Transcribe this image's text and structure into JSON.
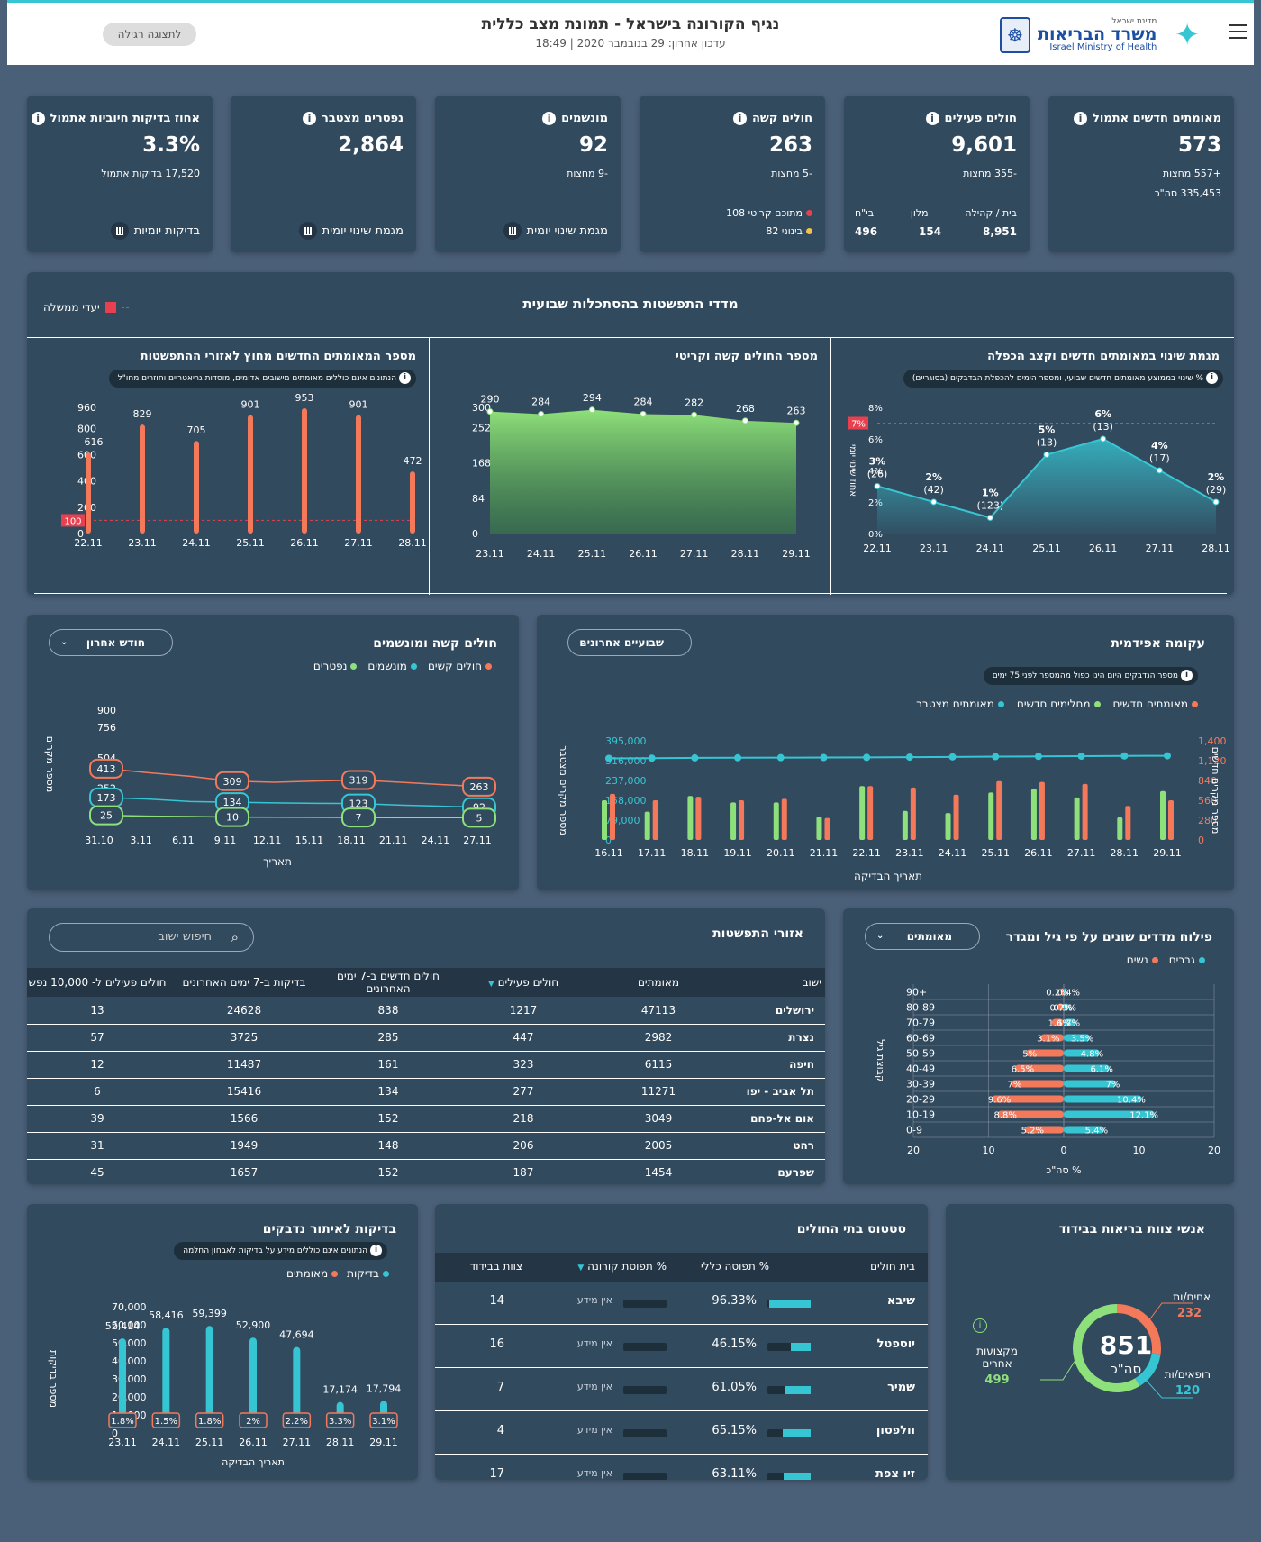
{
  "header": {
    "title": "נגיף הקורונה בישראל - תמונת מצב כללית",
    "updated": "עדכון אחרון: 29 בנובמבר 2020 | 18:49",
    "regular_view": "לתצוגה רגילה",
    "logo_small": "מדינת ישראל",
    "logo_big": "משרד הבריאות",
    "logo_en": "Israel Ministry of Health"
  },
  "kpis": [
    {
      "title": "מאומתים חדשים אתמול",
      "value": "573",
      "s1": "+557 מחצות",
      "s2": "335,453 סה\"כ"
    },
    {
      "title": "חולים פעילים",
      "value": "9,601",
      "s1": "-355 מחצות",
      "h1": "בית / קהילה",
      "h2": "מלון",
      "h3": "בי\"ח",
      "v1": "8,951",
      "v2": "154",
      "v3": "496"
    },
    {
      "title": "חולים קשה",
      "value": "263",
      "s1": "-5 מחצות",
      "r1": "מתוכם קריטי 108",
      "r2": "בינוני 82"
    },
    {
      "title": "מונשמים",
      "value": "92",
      "s1": "-9 מחצות",
      "foot": "מגמת שינוי יומית"
    },
    {
      "title": "נפטרים מצטבר",
      "value": "2,864",
      "foot": "מגמת שינוי יומית"
    },
    {
      "title": "אחוז בדיקות חיוביות אתמול",
      "value": "3.3%",
      "s1": "17,520 בדיקות אתמול",
      "foot": "בדיקות יומיות"
    }
  ],
  "weekly": {
    "title": "מדדי התפשטות בהסתכלות שבועית",
    "gov_targets": "יעדי ממשלה",
    "c1": {
      "title": "מגמת שינוי במאומתים חדשים וקצב הכפלה",
      "note": "% שינוי בממוצע מאומתים חדשים שבועי, ומספר הימים להכפלת הבדבקים (בסוגריים)",
      "ylabel": "אחוז שינוי יומי",
      "target": "7%"
    },
    "c2": {
      "title": "מספר החולים קשה וקריטי"
    },
    "c3": {
      "title": "מספר המאומתים החדשים מחוץ לאזורי ההתפשטות",
      "note": "הנתונים אינם כוללים מאומתים מישובים אדומים, מוסדות גריאטריים וחוזרים מחו\"ל",
      "target": "100"
    }
  },
  "epi": {
    "title": "עקומה אפידמית",
    "dropdown": "שבועיים אחרונים",
    "note": "מספר הנדבקים היום הינו כפול מהמספר לפני 75 ימים",
    "legend": [
      "מאומתים חדשים",
      "מחלימים חדשים",
      "מאומתים מצטבר"
    ],
    "ylabel_r": "מספר מקרים חדשים",
    "ylabel_l": "מספר מקרים מצטבר",
    "xlabel": "תאריך הבדיקה"
  },
  "severe": {
    "title": "חולים קשה ומונשמים",
    "dropdown": "חודש אחרון",
    "legend": [
      "חולים קשים",
      "מונשמים",
      "נפטרים"
    ],
    "ylabel": "מספר מקרים",
    "xlabel": "תאריך"
  },
  "age": {
    "title": "פילוח מדדים שונים על פי גיל ומגדר",
    "dropdown": "מאומתים",
    "legend": [
      "גברים",
      "נשים"
    ],
    "ylabel": "קבוצת גיל",
    "xlabel": "% סה\"כ"
  },
  "table": {
    "title": "אזורי התפשטות",
    "search": "חיפוש ישוב",
    "headers": [
      "ישוב",
      "מאומתים",
      "חולים פעילים",
      "חולים חדשים ב-7 ימים האחרונים",
      "בדיקות ב-7 ימים האחרונים",
      "חולים פעילים ל- 10,000 נפש"
    ],
    "rows": [
      [
        "ירושלים",
        "47113",
        "1217",
        "838",
        "24628",
        "13"
      ],
      [
        "נצרת",
        "2982",
        "447",
        "285",
        "3725",
        "57"
      ],
      [
        "חיפה",
        "6115",
        "323",
        "161",
        "11487",
        "12"
      ],
      [
        "תל אביב - יפו",
        "11271",
        "277",
        "134",
        "15416",
        "6"
      ],
      [
        "אום אל-פחם",
        "3049",
        "218",
        "152",
        "1566",
        "39"
      ],
      [
        "רהט",
        "2005",
        "206",
        "148",
        "1949",
        "31"
      ],
      [
        "שפרעם",
        "1454",
        "187",
        "152",
        "1657",
        "45"
      ]
    ]
  },
  "tests": {
    "title": "בדיקות לאיתור נדבקים",
    "note": "הנתונים אינם כוללים מידע על בדיקות לאבחון החלמה",
    "legend": [
      "בדיקות",
      "מאומתים"
    ],
    "ylabel": "מספר בדיקות",
    "xlabel": "תאריך הבדיקה"
  },
  "hospitals": {
    "title": "סטטוס בתי החולים",
    "headers": [
      "בית חולים",
      "% תפוסה כללי",
      "% תפוסת קורונה",
      "צוות בבידוד"
    ],
    "rows": [
      {
        "name": "שיבא",
        "occ": "96.33%",
        "occ_pct": 96.33,
        "corona": "אין מידע",
        "staff": "14"
      },
      {
        "name": "יוספטל",
        "occ": "46.15%",
        "occ_pct": 46.15,
        "corona": "אין מידע",
        "staff": "16"
      },
      {
        "name": "שמיר",
        "occ": "61.05%",
        "occ_pct": 61.05,
        "corona": "אין מידע",
        "staff": "7"
      },
      {
        "name": "וולפסון",
        "occ": "65.15%",
        "occ_pct": 65.15,
        "corona": "אין מידע",
        "staff": "4"
      },
      {
        "name": "זיו צפת",
        "occ": "63.11%",
        "occ_pct": 63.11,
        "corona": "אין מידע",
        "staff": "17"
      }
    ]
  },
  "staff": {
    "title": "אנשי צוות בריאות בבידוד",
    "total": "851",
    "total_label": "סה\"כ",
    "nurses_label": "אחים/ות",
    "nurses": "232",
    "doctors_label": "רופאים/ות",
    "doctors": "120",
    "other_label": "מקצועות אחרים",
    "other": "499"
  },
  "chart_data": [
    {
      "type": "area",
      "title": "מגמת שינוי במאומתים חדשים וקצב הכפלה",
      "x": [
        "22.11",
        "23.11",
        "24.11",
        "25.11",
        "26.11",
        "27.11",
        "28.11"
      ],
      "values": [
        3,
        2,
        1,
        5,
        6,
        4,
        2
      ],
      "labels": [
        "3%",
        "2%",
        "1%",
        "5%",
        "6%",
        "4%",
        "2%"
      ],
      "doubling": [
        "(26)",
        "(42)",
        "(123)",
        "(13)",
        "(13)",
        "(17)",
        "(29)"
      ],
      "ylim": [
        0,
        8
      ],
      "yticks": [
        "0%",
        "2%",
        "4%",
        "6%",
        "8%"
      ]
    },
    {
      "type": "area",
      "title": "מספר החולים קשה וקריטי",
      "x": [
        "23.11",
        "24.11",
        "25.11",
        "26.11",
        "27.11",
        "28.11",
        "29.11"
      ],
      "values": [
        290,
        284,
        294,
        284,
        282,
        268,
        263
      ],
      "ylim": [
        0,
        300
      ],
      "yticks": [
        "0",
        "84",
        "168",
        "252",
        "300"
      ]
    },
    {
      "type": "bar",
      "title": "מספר המאומתים החדשים מחוץ לאזורי ההתפשטות",
      "x": [
        "22.11",
        "23.11",
        "24.11",
        "25.11",
        "26.11",
        "27.11",
        "28.11"
      ],
      "values": [
        616,
        829,
        705,
        901,
        953,
        901,
        472
      ],
      "ylim": [
        0,
        960
      ],
      "yticks": [
        "0",
        "200",
        "400",
        "600",
        "800",
        "960"
      ]
    },
    {
      "type": "bar",
      "title": "עקומה אפידמית",
      "x": [
        "16.11",
        "17.11",
        "18.11",
        "19.11",
        "20.11",
        "21.11",
        "22.11",
        "23.11",
        "24.11",
        "25.11",
        "26.11",
        "27.11",
        "28.11",
        "29.11"
      ],
      "series": [
        {
          "name": "מאומתים חדשים",
          "values": [
            650,
            560,
            610,
            560,
            580,
            310,
            760,
            740,
            640,
            830,
            820,
            790,
            480,
            560
          ]
        },
        {
          "name": "מחלימים חדשים",
          "values": [
            560,
            400,
            620,
            530,
            530,
            330,
            760,
            410,
            380,
            670,
            720,
            600,
            320,
            690
          ]
        },
        {
          "name": "מאומתים מצטבר",
          "values": [
            325000,
            326000,
            327000,
            327500,
            328000,
            328500,
            329000,
            330000,
            331000,
            332000,
            333000,
            334000,
            334800,
            335453
          ]
        }
      ],
      "yticks_right": [
        "0",
        "280",
        "560",
        "840",
        "1,120",
        "1,400"
      ],
      "yticks_left": [
        "0",
        "79,000",
        "158,000",
        "237,000",
        "316,000",
        "395,000"
      ]
    },
    {
      "type": "line",
      "title": "חולים קשה ומונשמים",
      "x": [
        "31.10",
        "3.11",
        "6.11",
        "9.11",
        "12.11",
        "15.11",
        "18.11",
        "21.11",
        "24.11",
        "27.11"
      ],
      "series": [
        {
          "name": "חולים קשים",
          "values": [
            413,
            380,
            350,
            309,
            300,
            310,
            319,
            300,
            280,
            263
          ]
        },
        {
          "name": "מונשמים",
          "values": [
            173,
            160,
            140,
            134,
            128,
            125,
            123,
            110,
            100,
            92
          ]
        },
        {
          "name": "נפטרים",
          "values": [
            25,
            18,
            15,
            10,
            9,
            8,
            7,
            6,
            6,
            5
          ]
        }
      ],
      "point_labels": [
        [
          "413",
          "309",
          "319",
          "263"
        ],
        [
          "173",
          "134",
          "123",
          "92"
        ],
        [
          "25",
          "10",
          "7",
          "5"
        ]
      ],
      "ylim": [
        0,
        900
      ],
      "yticks": [
        "0",
        "252",
        "504",
        "756",
        "900"
      ]
    },
    {
      "type": "bar",
      "title": "פילוח מדדים שונים על פי גיל ומגדר",
      "categories": [
        "+90",
        "80-89",
        "70-79",
        "60-69",
        "50-59",
        "40-49",
        "30-39",
        "20-29",
        "10-19",
        "0-9"
      ],
      "series": [
        {
          "name": "נשים",
          "values": [
            0.4,
            0.9,
            1.6,
            3.1,
            5,
            6.5,
            7,
            9.6,
            8.8,
            5.2
          ]
        },
        {
          "name": "גברים",
          "values": [
            0.2,
            0.7,
            1.7,
            3.5,
            4.8,
            6.1,
            7,
            10.4,
            12.1,
            5.4
          ]
        }
      ],
      "xticks": [
        "20",
        "10",
        "0",
        "10",
        "20"
      ]
    },
    {
      "type": "bar",
      "title": "בדיקות לאיתור נדבקים",
      "x": [
        "23.11",
        "24.11",
        "25.11",
        "26.11",
        "27.11",
        "28.11",
        "29.11"
      ],
      "series": [
        {
          "name": "בדיקות",
          "values": [
            52414,
            58416,
            59399,
            52900,
            47694,
            17174,
            17794
          ]
        }
      ],
      "value_labels": [
        "52,414",
        "58,416",
        "59,399",
        "52,900",
        "47,694",
        "17,174",
        "17,794"
      ],
      "pos_labels": [
        "1.8%",
        "1.5%",
        "1.8%",
        "2%",
        "2.2%",
        "3.3%",
        "3.1%"
      ],
      "yticks": [
        "0",
        "10,000",
        "20,000",
        "30,000",
        "40,000",
        "50,000",
        "60,000",
        "70,000"
      ]
    },
    {
      "type": "pie",
      "title": "אנשי צוות בריאות בבידוד",
      "labels": [
        "אחים/ות",
        "רופאים/ות",
        "מקצועות אחרים"
      ],
      "values": [
        232,
        120,
        499
      ]
    }
  ],
  "colors": {
    "orange": "#f4795b",
    "teal": "#36c6d3",
    "green": "#8ee07a",
    "red": "#e8404f",
    "card": "#324a5e"
  }
}
